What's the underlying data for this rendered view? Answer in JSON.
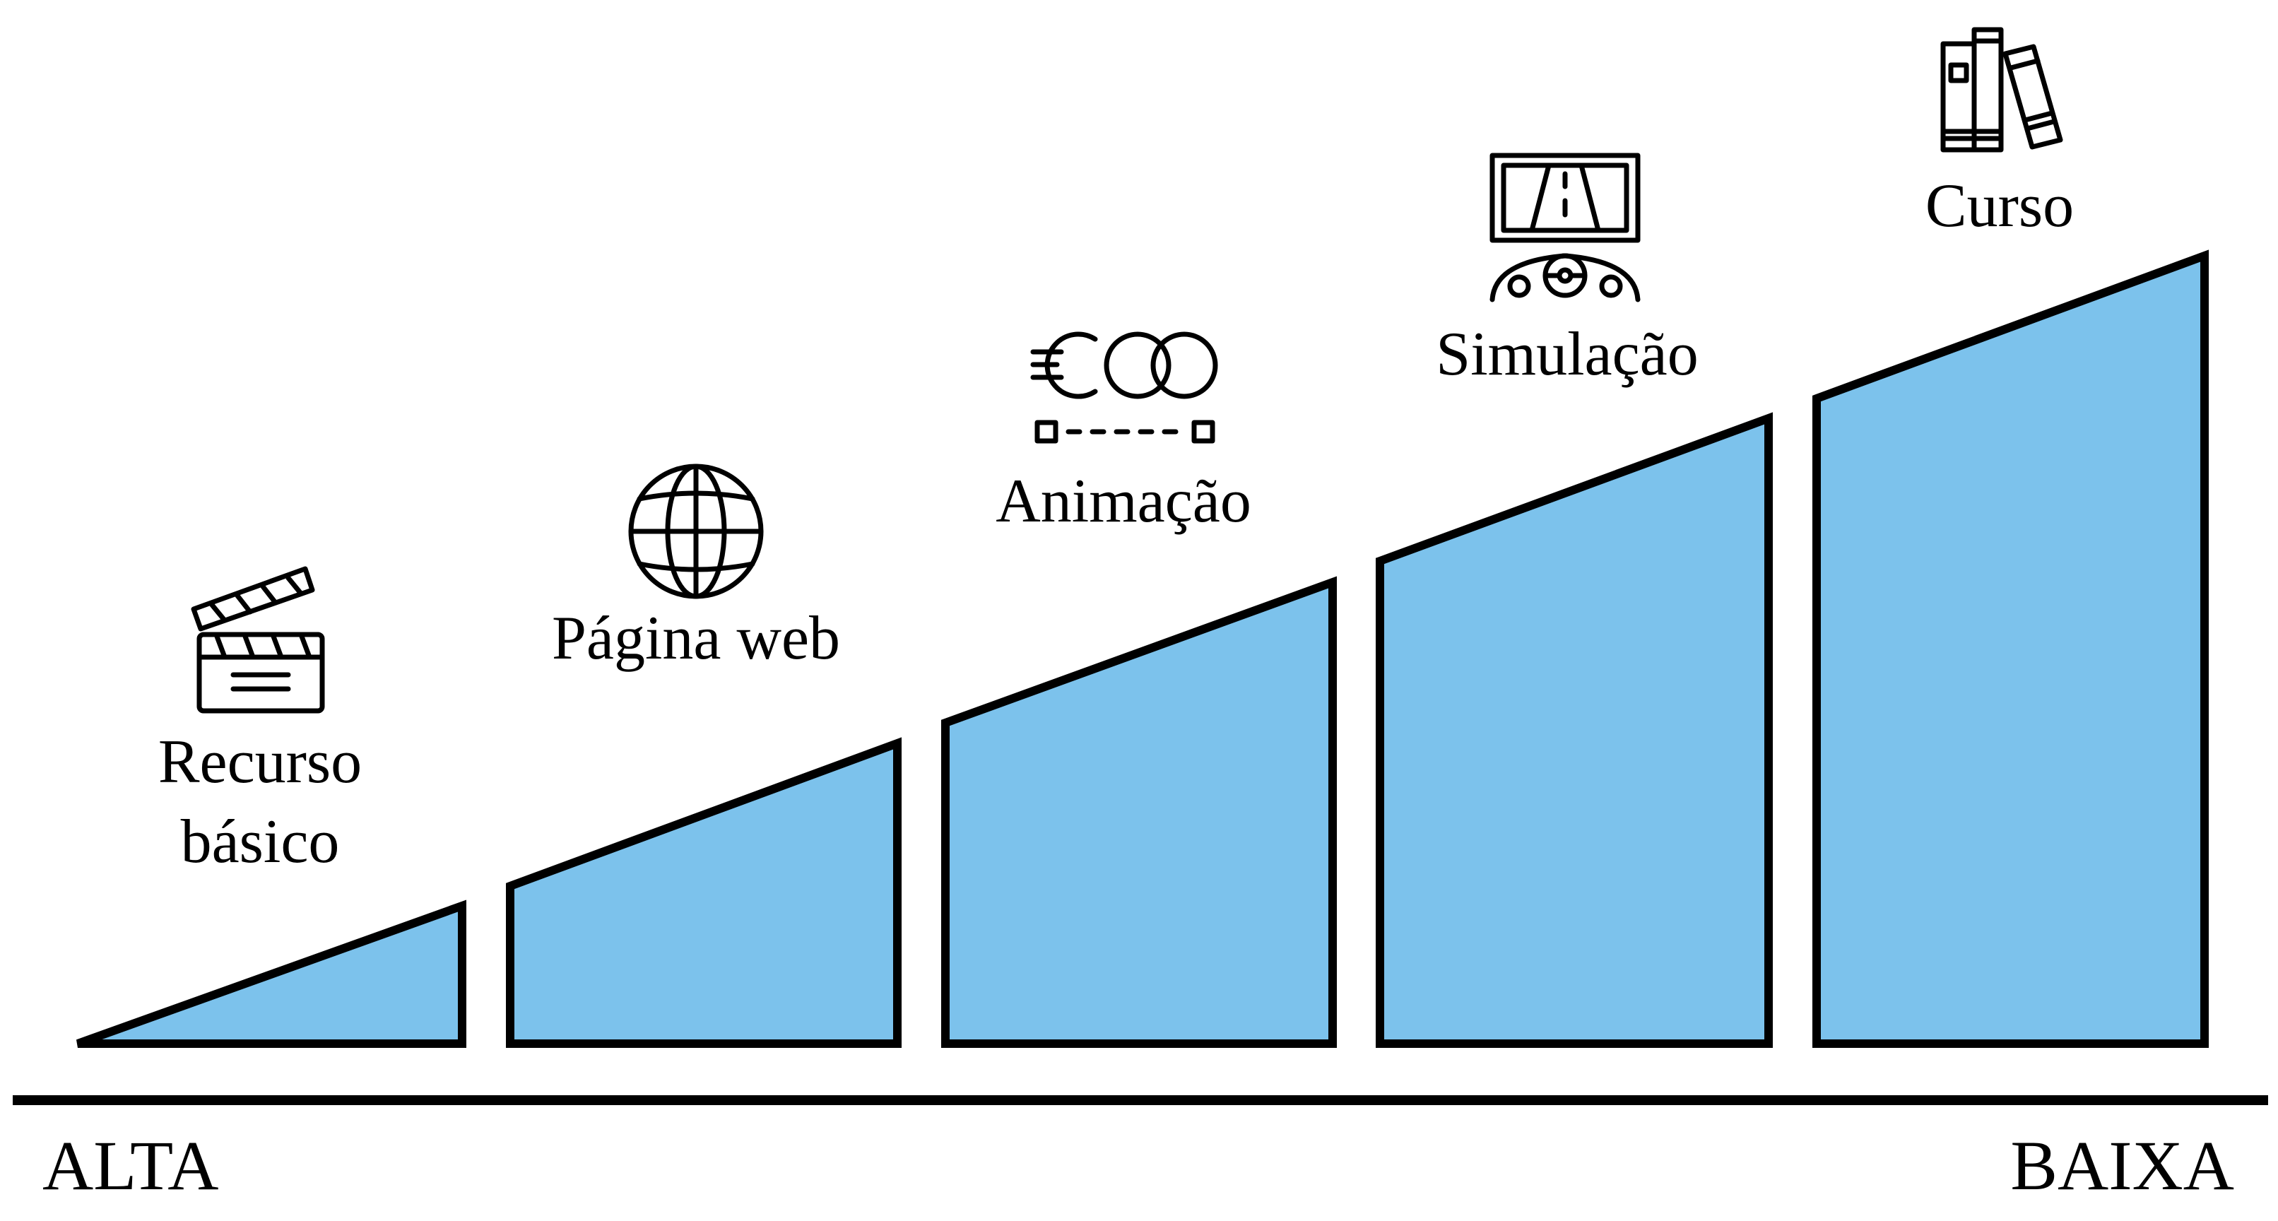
{
  "steps": [
    {
      "label_line1": "Recurso",
      "label_line2": "básico",
      "icon": "clapperboard-icon"
    },
    {
      "label": "Página web",
      "icon": "globe-icon"
    },
    {
      "label": "Animação",
      "icon": "animation-icon"
    },
    {
      "label": "Simulação",
      "icon": "driving-simulator-icon"
    },
    {
      "label": "Curso",
      "icon": "books-icon"
    }
  ],
  "axis": {
    "left_label": "ALTA",
    "right_label": "BAIXA"
  },
  "colors": {
    "step_fill": "#7cc2ec",
    "stroke": "#000000",
    "background": "#ffffff"
  }
}
